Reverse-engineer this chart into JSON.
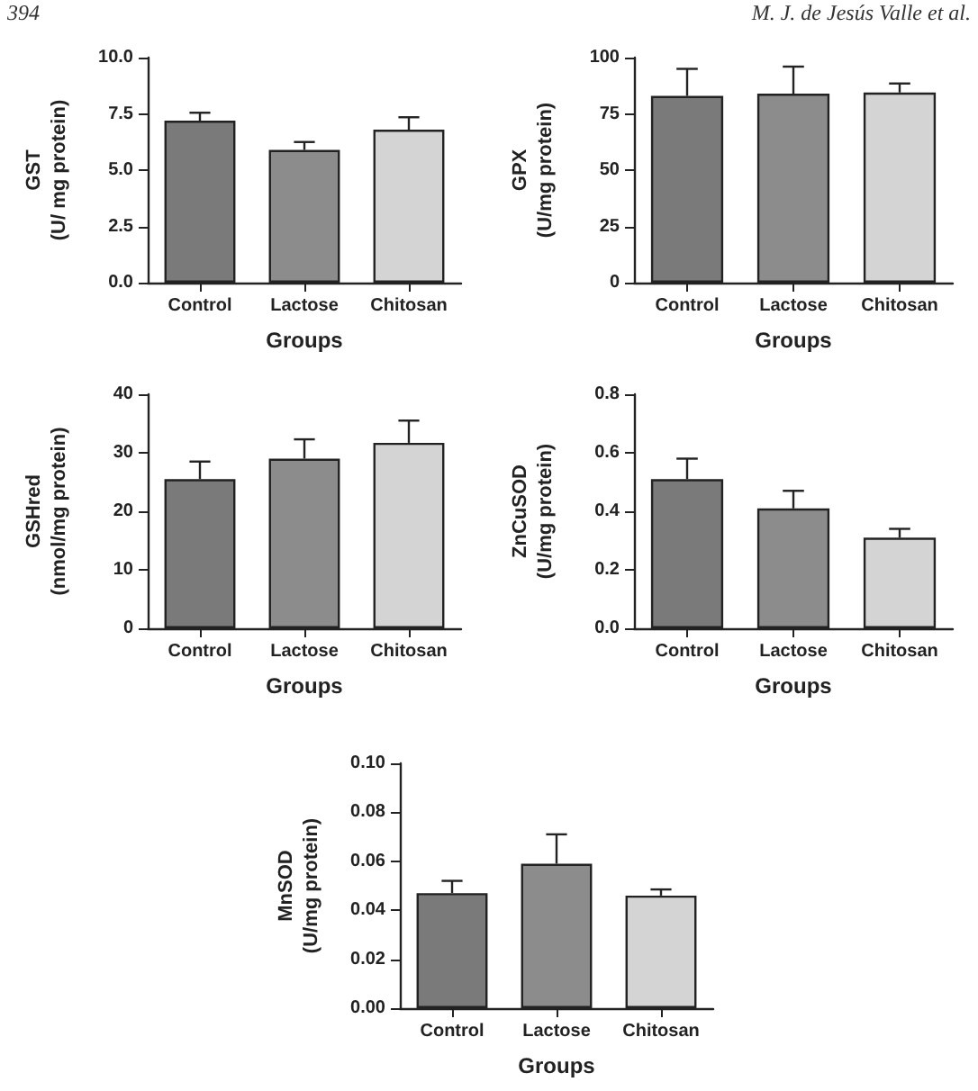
{
  "chart_data": [
    {
      "type": "bar",
      "xlabel": "Groups",
      "ylabel": "GST\n(U/ mg protein)",
      "categories": [
        "Control",
        "Lactose",
        "Chitosan"
      ],
      "values": [
        7.2,
        5.9,
        6.8
      ],
      "colors": [
        "#7a7a7a",
        "#8c8c8c",
        "#d4d4d4"
      ],
      "errors": [
        [
          7.2,
          7.55
        ],
        [
          5.9,
          6.25
        ],
        [
          6.8,
          7.35
        ]
      ],
      "ylim": [
        0,
        10
      ],
      "yticks": [
        {
          "value": 0,
          "label": "0.0"
        },
        {
          "value": 2.5,
          "label": "2.5"
        },
        {
          "value": 5,
          "label": "5.0"
        },
        {
          "value": 7.5,
          "label": "7.5"
        },
        {
          "value": 10,
          "label": "10.0"
        }
      ],
      "grid": false,
      "annotations": [
        "394",
        "M. J. de Jesús Valle et al."
      ]
    },
    {
      "type": "bar",
      "xlabel": "Groups",
      "ylabel": "GPX\n(U/mg protein)",
      "categories": [
        "Control",
        "Lactose",
        "Chitosan"
      ],
      "values": [
        83,
        84,
        84.5
      ],
      "colors": [
        "#7a7a7a",
        "#8c8c8c",
        "#d4d4d4"
      ],
      "errors": [
        [
          83,
          95
        ],
        [
          84,
          96
        ],
        [
          84.5,
          88.5
        ]
      ],
      "ylim": [
        0,
        100
      ],
      "yticks": [
        0,
        25,
        50,
        75,
        100
      ],
      "grid": false
    },
    {
      "type": "bar",
      "xlabel": "Groups",
      "ylabel": "GSHred\n(nmol/mg protein)",
      "categories": [
        "Control",
        "Lactose",
        "Chitosan"
      ],
      "values": [
        25.5,
        29,
        31.7
      ],
      "colors": [
        "#7a7a7a",
        "#8c8c8c",
        "#d4d4d4"
      ],
      "errors": [
        [
          25.5,
          28.5
        ],
        [
          29,
          32.3
        ],
        [
          31.7,
          35.5
        ]
      ],
      "ylim": [
        0,
        40
      ],
      "yticks": [
        0,
        10,
        20,
        30,
        40
      ],
      "grid": false
    },
    {
      "type": "bar",
      "xlabel": "Groups",
      "ylabel": "ZnCuSOD\n(U/mg protein)",
      "categories": [
        "Control",
        "Lactose",
        "Chitosan"
      ],
      "values": [
        0.51,
        0.41,
        0.31
      ],
      "colors": [
        "#7a7a7a",
        "#8c8c8c",
        "#d4d4d4"
      ],
      "errors": [
        [
          0.51,
          0.58
        ],
        [
          0.41,
          0.47
        ],
        [
          0.31,
          0.34
        ]
      ],
      "ylim": [
        0,
        0.8
      ],
      "yticks": [
        {
          "value": 0,
          "label": "0.0"
        },
        0.2,
        0.4,
        0.6,
        0.8
      ],
      "grid": false
    },
    {
      "type": "bar",
      "xlabel": "Groups",
      "ylabel": "MnSOD\n(U/mg protein)",
      "categories": [
        "Control",
        "Lactose",
        "Chitosan"
      ],
      "values": [
        0.047,
        0.059,
        0.046
      ],
      "colors": [
        "#7a7a7a",
        "#8c8c8c",
        "#d4d4d4"
      ],
      "errors": [
        [
          0.047,
          0.052
        ],
        [
          0.059,
          0.071
        ],
        [
          0.046,
          0.0485
        ]
      ],
      "ylim": [
        0,
        0.1
      ],
      "yticks": [
        {
          "value": 0,
          "label": "0.00"
        },
        0.02,
        0.04,
        0.06,
        0.08,
        {
          "value": 0.1,
          "label": "0.10"
        }
      ],
      "grid": false
    }
  ]
}
